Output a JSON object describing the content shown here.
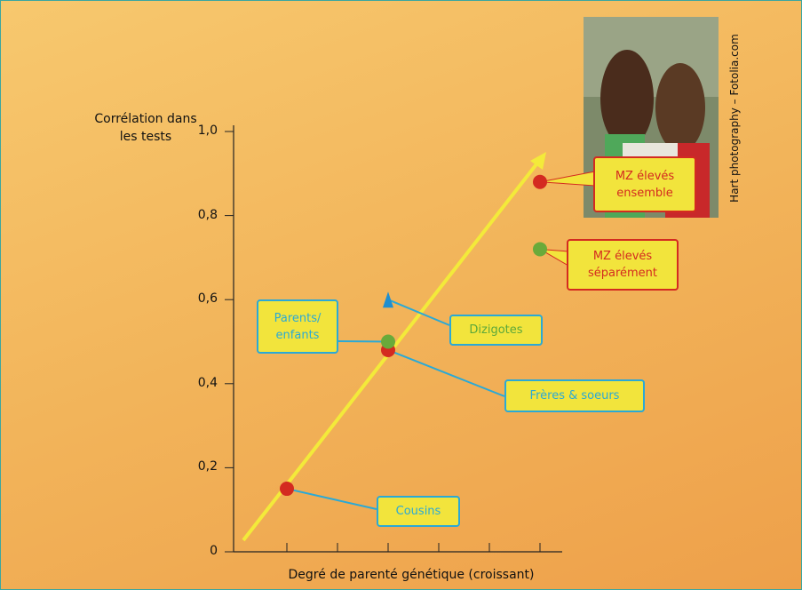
{
  "chart_data": {
    "type": "scatter",
    "ylabel": "Corrélation dans les tests",
    "xlabel": "Degré de parenté génétique (croissant)",
    "photo_credit": "Hart photography – Fotolia.com",
    "categories": [
      null,
      null,
      null,
      null,
      null,
      null
    ],
    "ylim": [
      0,
      1
    ],
    "yticks": [
      0,
      {
        "value": 0.2,
        "label": "0,2"
      },
      {
        "value": 0.4,
        "label": "0,4"
      },
      {
        "value": 0.6,
        "label": "0,6"
      },
      {
        "value": 0.8,
        "label": "0,8"
      },
      {
        "value": 1,
        "label": "1,0"
      }
    ],
    "series": [
      {
        "name": "Cousins",
        "color": "#d42a20",
        "marker": "circle",
        "label_color": "#2aa9d6",
        "values": [
          0.15,
          null,
          null,
          null,
          null,
          null
        ]
      },
      {
        "name": "Frères & soeurs",
        "color": "#d42a20",
        "marker": "circle",
        "label_color": "#2aa9d6",
        "values": [
          null,
          null,
          0.48,
          null,
          null,
          null
        ]
      },
      {
        "name": "Parents/ enfants",
        "color": "#6aaa3a",
        "marker": "circle",
        "label_color": "#2aa9d6",
        "values": [
          null,
          null,
          0.5,
          null,
          null,
          null
        ]
      },
      {
        "name": "Dizigotes",
        "color": "#1f8fd0",
        "marker": "triangle",
        "label_color": "#5ca83a",
        "values": [
          null,
          null,
          0.6,
          null,
          null,
          null
        ]
      },
      {
        "name": "MZ élevés séparément",
        "color": "#6aaa3a",
        "marker": "circle",
        "label_color": "#d42a20",
        "values": [
          null,
          null,
          null,
          null,
          null,
          0.72
        ]
      },
      {
        "name": "MZ élevés ensemble",
        "color": "#d42a20",
        "marker": "circle",
        "label_color": "#d42a20",
        "values": [
          null,
          null,
          null,
          null,
          null,
          0.88
        ]
      }
    ]
  }
}
